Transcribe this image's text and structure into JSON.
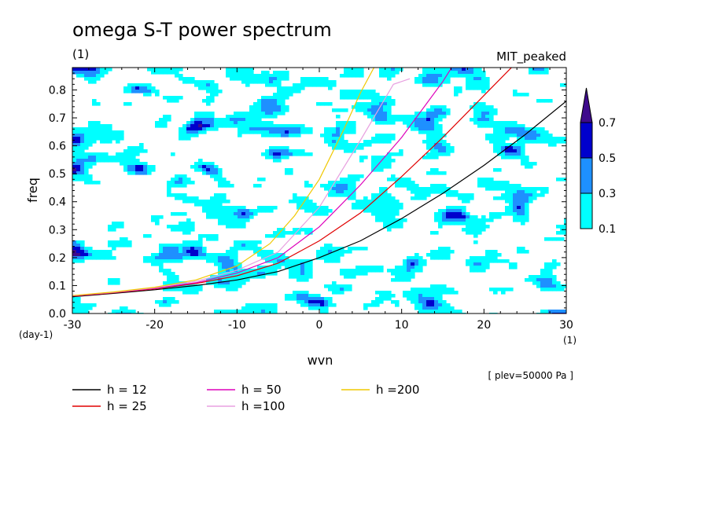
{
  "header": {
    "title": "omega S-T power spectrum",
    "subtitle_unit": "(1)",
    "model": "MIT_peaked"
  },
  "chart_data": {
    "type": "heatmap",
    "xlabel": "wvn",
    "ylabel": "freq",
    "x_unit": "(1)",
    "y_unit": "(day-1)",
    "xlim": [
      -30,
      30
    ],
    "ylim": [
      0,
      0.88
    ],
    "x_ticks": [
      -30,
      -20,
      -10,
      0,
      10,
      20,
      30
    ],
    "y_ticks": [
      0.0,
      0.1,
      0.2,
      0.3,
      0.4,
      0.5,
      0.6,
      0.7,
      0.8
    ],
    "x_tick_labels": [
      "-30",
      "-20",
      "-10",
      "0",
      "10",
      "20",
      "30"
    ],
    "y_tick_labels": [
      "0.0",
      "0.1",
      "0.2",
      "0.3",
      "0.4",
      "0.5",
      "0.6",
      "0.7",
      "0.8"
    ],
    "annotation": "[ plev=50000 Pa ]",
    "colorbar": {
      "levels": [
        0.1,
        0.3,
        0.5,
        0.7
      ],
      "level_labels": [
        "0.1",
        "0.3",
        "0.5",
        "0.7"
      ],
      "colors": [
        "#00ffff",
        "#1e90ff",
        "#0000cd",
        "#3e0a8c"
      ]
    },
    "series": [
      {
        "name": "h = 12",
        "color": "#000000",
        "x": [
          -30,
          -25,
          -20,
          -15,
          -10,
          -5,
          0,
          5,
          10,
          15,
          20,
          25,
          30
        ],
        "y": [
          0.06,
          0.072,
          0.085,
          0.1,
          0.12,
          0.15,
          0.2,
          0.26,
          0.34,
          0.43,
          0.53,
          0.64,
          0.76
        ]
      },
      {
        "name": "h = 25",
        "color": "#e00000",
        "x": [
          -30,
          -25,
          -20,
          -15,
          -10,
          -5,
          0,
          5,
          10,
          15,
          20,
          24
        ],
        "y": [
          0.062,
          0.074,
          0.088,
          0.107,
          0.135,
          0.18,
          0.26,
          0.36,
          0.49,
          0.63,
          0.78,
          0.9
        ]
      },
      {
        "name": "h = 50",
        "color": "#dd00bb",
        "x": [
          -30,
          -25,
          -20,
          -15,
          -10,
          -5,
          0,
          5,
          10,
          15,
          16.5
        ],
        "y": [
          0.063,
          0.075,
          0.09,
          0.11,
          0.145,
          0.2,
          0.31,
          0.46,
          0.63,
          0.83,
          0.9
        ]
      },
      {
        "name": "h =100",
        "color": "#e8a0e0",
        "x": [
          -30,
          -25,
          -20,
          -15,
          -10,
          -5,
          0,
          5,
          9,
          11
        ],
        "y": [
          0.064,
          0.076,
          0.092,
          0.115,
          0.155,
          0.22,
          0.38,
          0.62,
          0.82,
          0.84
        ]
      },
      {
        "name": "h =200",
        "color": "#f0c800",
        "x": [
          -30,
          -25,
          -20,
          -15,
          -10,
          -6,
          -3,
          0,
          3,
          5,
          7
        ],
        "y": [
          0.064,
          0.077,
          0.094,
          0.12,
          0.17,
          0.25,
          0.35,
          0.48,
          0.66,
          0.79,
          0.9
        ]
      }
    ]
  },
  "legend": {
    "items": [
      {
        "label": "h = 12",
        "color": "#000000"
      },
      {
        "label": "h = 25",
        "color": "#e00000"
      },
      {
        "label": "h = 50",
        "color": "#dd00bb"
      },
      {
        "label": "h =100",
        "color": "#e8a0e0"
      },
      {
        "label": "h =200",
        "color": "#f0c800"
      }
    ]
  }
}
